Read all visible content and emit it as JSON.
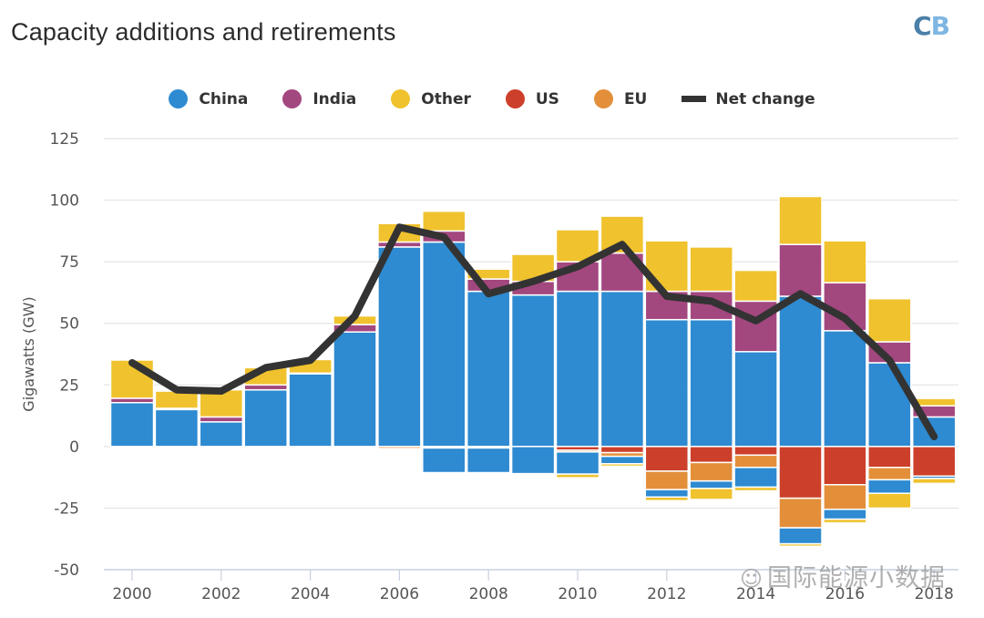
{
  "header": {
    "title": "Capacity additions and retirements",
    "logo": {
      "part1": "C",
      "part2": "B"
    }
  },
  "watermark": {
    "icon": "wechat-icon",
    "icon_glyph": "☺",
    "text": "国际能源小数据"
  },
  "chart_data": {
    "type": "bar",
    "stacked": true,
    "title": "Capacity additions and retirements",
    "xlabel": "",
    "ylabel": "Gigawatts (GW)",
    "ylim": [
      -50,
      125
    ],
    "yticks": [
      125,
      100,
      75,
      50,
      25,
      0,
      -25,
      -50
    ],
    "xtick_labels": [
      "2000",
      "2002",
      "2004",
      "2006",
      "2008",
      "2010",
      "2012",
      "2014",
      "2016",
      "2018"
    ],
    "grid": true,
    "legend_position": "top-center",
    "categories": [
      "2000",
      "2001",
      "2002",
      "2003",
      "2004",
      "2005",
      "2006",
      "2007",
      "2008",
      "2009",
      "2010",
      "2011",
      "2012",
      "2013",
      "2014",
      "2015",
      "2016",
      "2017",
      "2018"
    ],
    "series": [
      {
        "name": "China",
        "color": "#2e8ad1",
        "type": "bar",
        "additions": [
          17.8,
          15,
          10,
          23,
          29.5,
          46.5,
          81,
          83,
          63,
          61.5,
          63,
          63,
          51.5,
          51.5,
          38.5,
          61,
          47,
          34,
          12
        ],
        "retirements": [
          0,
          0,
          0,
          0,
          0,
          0,
          0,
          -10,
          -10,
          -11,
          -9,
          -3,
          -3,
          -3,
          -8,
          -6.5,
          -4,
          -5.5,
          -1
        ]
      },
      {
        "name": "India",
        "color": "#a3477f",
        "type": "bar",
        "additions": [
          1.8,
          0.5,
          2,
          2,
          0.3,
          3,
          2,
          4.5,
          5,
          5.5,
          12,
          15.5,
          11.5,
          11.5,
          20.5,
          21,
          19.5,
          8.5,
          4.5
        ],
        "retirements": [
          0,
          0,
          0,
          0,
          0,
          0,
          0,
          0,
          0,
          0,
          0,
          0,
          0,
          0,
          0,
          0,
          0,
          0,
          0
        ]
      },
      {
        "name": "Other",
        "color": "#f0c22e",
        "type": "bar",
        "additions": [
          15.5,
          7,
          11,
          7,
          5.5,
          3.5,
          7.5,
          8,
          4,
          11,
          13,
          15,
          20.5,
          18,
          12.5,
          19.5,
          17,
          17.5,
          3
        ],
        "retirements": [
          0,
          0,
          0,
          0,
          0,
          0,
          0,
          0,
          0,
          0,
          -1.5,
          -1,
          -1.5,
          -4.5,
          -1.5,
          -1,
          -1.5,
          -6,
          -2
        ]
      },
      {
        "name": "US",
        "color": "#cc3f2a",
        "type": "bar",
        "additions": [
          0,
          0,
          0,
          0,
          0,
          0,
          0,
          0,
          0,
          0,
          0,
          0,
          0,
          0,
          0,
          0,
          0,
          0,
          0
        ],
        "retirements": [
          0,
          0,
          0,
          0,
          0,
          0,
          0,
          0,
          0,
          0,
          -1.5,
          -2.5,
          -10,
          -6.5,
          -3.5,
          -21,
          -15.5,
          -8.5,
          -12
        ]
      },
      {
        "name": "EU",
        "color": "#e38f3a",
        "type": "bar",
        "additions": [
          0,
          0,
          0,
          0,
          0,
          0,
          0,
          0,
          0,
          0,
          0,
          0,
          0,
          0,
          0,
          0,
          0,
          0,
          0
        ],
        "retirements": [
          0,
          0,
          0,
          0,
          0,
          0,
          -0.8,
          -0.6,
          -0.6,
          0,
          -0.7,
          -1.5,
          -7.5,
          -7.5,
          -5,
          -12,
          -10,
          -5,
          0
        ]
      },
      {
        "name": "Net change",
        "color": "#333333",
        "type": "line",
        "values": [
          34,
          23,
          22.5,
          32,
          35,
          53,
          89,
          85,
          62,
          67,
          73,
          82,
          61,
          59,
          51,
          62,
          52,
          35,
          4
        ]
      }
    ]
  }
}
